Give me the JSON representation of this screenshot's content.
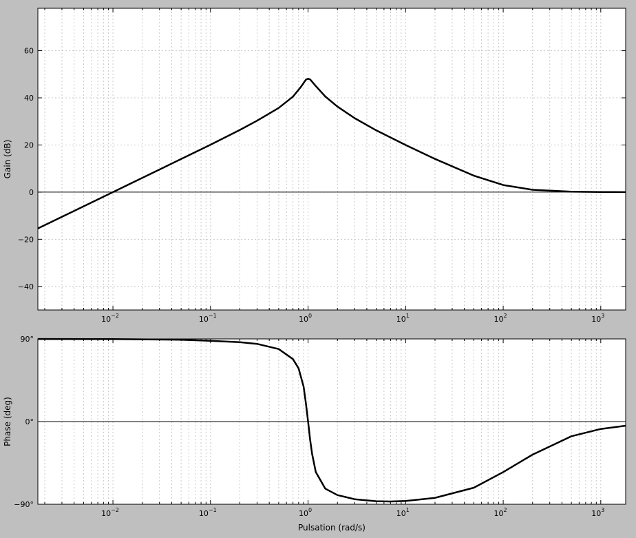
{
  "chart_data": [
    {
      "type": "line",
      "ylabel": "Gain (dB)",
      "xlabel": "",
      "xscale": "log",
      "xlim": [
        0.0017,
        1800
      ],
      "ylim": [
        -50,
        78
      ],
      "yticks": [
        -40,
        -20,
        0,
        20,
        40,
        60
      ],
      "ytick_labels": [
        "−40",
        "−20",
        "0",
        "20",
        "40",
        "60"
      ],
      "xtick_labels": [
        {
          "base": "10",
          "exp": "−2"
        },
        {
          "base": "10",
          "exp": "−1"
        },
        {
          "base": "10",
          "exp": "0"
        },
        {
          "base": "10",
          "exp": "1"
        },
        {
          "base": "10",
          "exp": "2"
        },
        {
          "base": "10",
          "exp": "3"
        }
      ],
      "grid": true,
      "reference_line_y": 0,
      "line_color": "#000000",
      "series": [
        {
          "x": [
            0.0017,
            0.003,
            0.01,
            0.03,
            0.1,
            0.2,
            0.3,
            0.5,
            0.7,
            0.85,
            0.95,
            1.0,
            1.05,
            1.2,
            1.5,
            2,
            3,
            5,
            10,
            20,
            50,
            100,
            200,
            500,
            1000,
            1800
          ],
          "values": [
            -15.4,
            -10.5,
            0,
            9.6,
            20.1,
            26.4,
            30.3,
            35.7,
            40.5,
            44.8,
            47.7,
            48.1,
            47.8,
            45.0,
            40.6,
            36.3,
            31.4,
            26.2,
            20.0,
            14.1,
            7.0,
            3.0,
            1.0,
            0.2,
            0.05,
            0.0
          ]
        }
      ]
    },
    {
      "type": "line",
      "ylabel": "Phase (deg)",
      "xlabel": "Pulsation (rad/s)",
      "xscale": "log",
      "xlim": [
        0.0017,
        1800
      ],
      "ylim": [
        -90,
        90
      ],
      "yticks": [
        -90,
        0,
        90
      ],
      "ytick_labels": [
        "−90°",
        "0°",
        "90°"
      ],
      "xtick_labels": [
        {
          "base": "10",
          "exp": "−2"
        },
        {
          "base": "10",
          "exp": "−1"
        },
        {
          "base": "10",
          "exp": "0"
        },
        {
          "base": "10",
          "exp": "1"
        },
        {
          "base": "10",
          "exp": "2"
        },
        {
          "base": "10",
          "exp": "3"
        }
      ],
      "grid": true,
      "reference_line_y": 0,
      "line_color": "#000000",
      "series": [
        {
          "x": [
            0.0017,
            0.01,
            0.05,
            0.1,
            0.2,
            0.3,
            0.5,
            0.7,
            0.8,
            0.9,
            0.95,
            1.0,
            1.05,
            1.1,
            1.2,
            1.5,
            2,
            3,
            5,
            7,
            10,
            20,
            50,
            100,
            200,
            500,
            1000,
            1800
          ],
          "values": [
            89.9,
            89.8,
            89.1,
            88.0,
            86.5,
            84.6,
            79.0,
            68.0,
            58.0,
            38.0,
            20.0,
            0.0,
            -20.0,
            -35.0,
            -55.0,
            -73.0,
            -80.0,
            -84.5,
            -86.7,
            -87.0,
            -86.5,
            -83.0,
            -72.0,
            -55.0,
            -36.0,
            -16.0,
            -8.0,
            -4.5
          ]
        }
      ]
    }
  ]
}
